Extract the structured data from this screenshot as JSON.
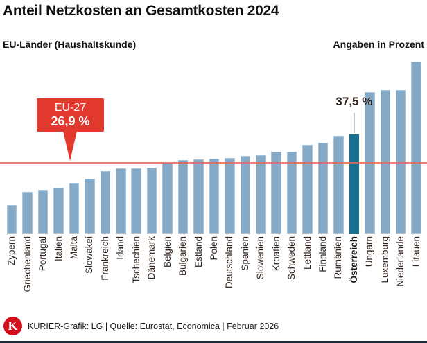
{
  "header": {
    "title": "Anteil Netzkosten an Gesamtkosten 2024",
    "subtitle_left": "EU-Länder (Haushaltskunde)",
    "subtitle_right": "Angaben in Prozent"
  },
  "chart_data": {
    "type": "bar",
    "title": "Anteil Netzkosten an Gesamtkosten 2024",
    "subtitle": "EU-Länder (Haushaltskunde)",
    "unit": "Prozent",
    "grid": false,
    "legend": false,
    "ylim": [
      0,
      68
    ],
    "categories": [
      "Zypern",
      "Griechenland",
      "Portugal",
      "Italien",
      "Malta",
      "Slowakei",
      "Frankreich",
      "Irland",
      "Tschechien",
      "Dänemark",
      "Belgien",
      "Bulgarien",
      "Estland",
      "Polen",
      "Deutschland",
      "Spanien",
      "Slowenien",
      "Kroatien",
      "Schweden",
      "Lettland",
      "Finnland",
      "Rumänien",
      "Österreich",
      "Ungarn",
      "Luxemburg",
      "Niederlande",
      "Litauen"
    ],
    "values": [
      10.8,
      15.7,
      16.5,
      17.3,
      19.1,
      20.8,
      23.5,
      24.8,
      24.8,
      25.0,
      26.9,
      27.7,
      28.2,
      28.4,
      28.7,
      29.3,
      29.6,
      31.1,
      31.1,
      33.6,
      34.3,
      37.1,
      37.5,
      53.6,
      54.3,
      54.4,
      65.0
    ],
    "highlight": {
      "category": "Österreich",
      "value": 37.5,
      "label": "37,5 %",
      "color": "#17708f"
    },
    "reference_line": {
      "label": "EU-27",
      "value": 26.9,
      "display": "26,9 %",
      "color": "#e3685e"
    },
    "bar_color": "#85aac8"
  },
  "annotations": {
    "eu_callout_line1": "EU-27",
    "eu_callout_line2": "26,9 %",
    "austria_value": "37,5 %"
  },
  "footer": {
    "logo_letter": "K",
    "credit": "KURIER-Grafik: LG | Quelle: Eurostat, Economica | Februar 2026"
  },
  "colors": {
    "bar": "#85aac8",
    "highlight_bar": "#17708f",
    "reference_line": "#e3685e",
    "callout_background": "#e2392f",
    "logo_red": "#d40f1c",
    "bottom_bar": "#1e2c3a"
  }
}
